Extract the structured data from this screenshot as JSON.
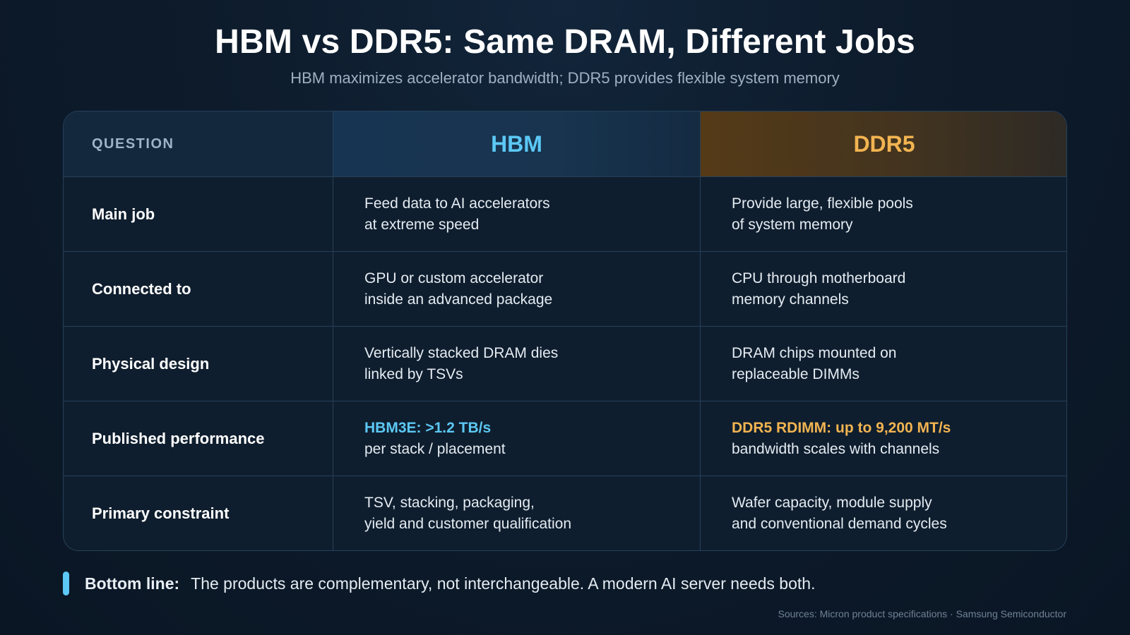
{
  "title": "HBM vs DDR5: Same DRAM, Different Jobs",
  "subtitle": "HBM maximizes accelerator bandwidth; DDR5 provides flexible system memory",
  "table": {
    "headers": {
      "question": "QUESTION",
      "hbm": "HBM",
      "ddr5": "DDR5"
    },
    "rows": [
      {
        "label": "Main job",
        "hbm": [
          "Feed data to AI accelerators",
          "at extreme speed"
        ],
        "ddr5": [
          "Provide large, flexible pools",
          "of system memory"
        ]
      },
      {
        "label": "Connected to",
        "hbm": [
          "GPU or custom accelerator",
          "inside an advanced package"
        ],
        "ddr5": [
          "CPU through motherboard",
          "memory channels"
        ]
      },
      {
        "label": "Physical design",
        "hbm": [
          "Vertically stacked DRAM dies",
          "linked by TSVs"
        ],
        "ddr5": [
          "DRAM chips mounted on",
          "replaceable DIMMs"
        ]
      },
      {
        "label": "Published performance",
        "hbm": [
          "HBM3E: >1.2 TB/s",
          "per stack / placement"
        ],
        "ddr5": [
          "DDR5 RDIMM: up to 9,200 MT/s",
          "bandwidth scales with channels"
        ]
      },
      {
        "label": "Primary constraint",
        "hbm": [
          "TSV, stacking, packaging,",
          "yield and customer qualification"
        ],
        "ddr5": [
          "Wafer capacity, module supply",
          "and conventional demand cycles"
        ]
      }
    ]
  },
  "bottom_line": {
    "label": "Bottom line:",
    "text": "The products are complementary, not interchangeable. A modern AI server needs both."
  },
  "sources": "Sources: Micron product specifications · Samsung Semiconductor",
  "colors": {
    "hbm_accent": "#5cc8f5",
    "ddr5_accent": "#f2b451",
    "background": "#0d1b2b"
  }
}
